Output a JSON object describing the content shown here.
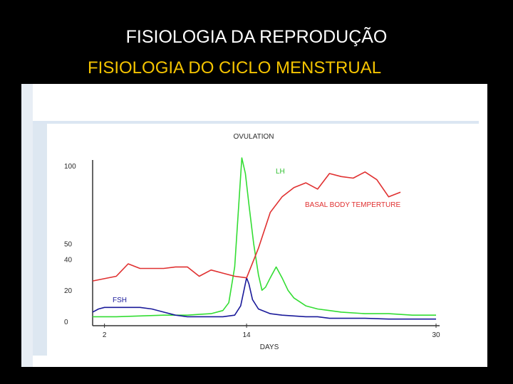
{
  "slide": {
    "title": "FISIOLOGIA DA REPRODUÇÃO",
    "subtitle": "FISIOLOGIA DO CICLO MENSTRUAL"
  },
  "colors": {
    "background": "#000000",
    "title": "#ffffff",
    "subtitle": "#f5c400",
    "lh": "#33dd33",
    "fsh": "#1a1a9a",
    "bbt": "#e03030"
  },
  "chart_data": {
    "type": "line",
    "title": "OVULATION",
    "xlabel": "DAYS",
    "ylabel": "",
    "xlim": [
      1,
      30
    ],
    "ylim": [
      0,
      100
    ],
    "x_ticks": [
      2,
      14,
      30
    ],
    "y_ticks": [
      0,
      20,
      40,
      50,
      100
    ],
    "grid": false,
    "series": [
      {
        "name": "LH",
        "color": "#33dd33",
        "points": [
          [
            1,
            3
          ],
          [
            3,
            3
          ],
          [
            5,
            3.5
          ],
          [
            7,
            4
          ],
          [
            9,
            4
          ],
          [
            10,
            4.5
          ],
          [
            11,
            5
          ],
          [
            12,
            7
          ],
          [
            12.5,
            12
          ],
          [
            13,
            35
          ],
          [
            13.3,
            70
          ],
          [
            13.6,
            105
          ],
          [
            13.9,
            95
          ],
          [
            14.2,
            75
          ],
          [
            14.6,
            50
          ],
          [
            15,
            30
          ],
          [
            15.3,
            20
          ],
          [
            15.6,
            22
          ],
          [
            16,
            28
          ],
          [
            16.5,
            35
          ],
          [
            17,
            28
          ],
          [
            17.5,
            20
          ],
          [
            18,
            15
          ],
          [
            19,
            10
          ],
          [
            20,
            8
          ],
          [
            21,
            7
          ],
          [
            22,
            6
          ],
          [
            24,
            5
          ],
          [
            26,
            5
          ],
          [
            28,
            4
          ],
          [
            30,
            4
          ]
        ]
      },
      {
        "name": "FSH",
        "color": "#1a1a9a",
        "points": [
          [
            1,
            6
          ],
          [
            1.5,
            8
          ],
          [
            2,
            9
          ],
          [
            3,
            9
          ],
          [
            4,
            9
          ],
          [
            5,
            9
          ],
          [
            6,
            8
          ],
          [
            7,
            6
          ],
          [
            8,
            4
          ],
          [
            9,
            3
          ],
          [
            10,
            3
          ],
          [
            11,
            3
          ],
          [
            12,
            3
          ],
          [
            13,
            4
          ],
          [
            13.5,
            10
          ],
          [
            14,
            28
          ],
          [
            14.2,
            24
          ],
          [
            14.5,
            14
          ],
          [
            15,
            8
          ],
          [
            16,
            5
          ],
          [
            17,
            4
          ],
          [
            18,
            3.5
          ],
          [
            19,
            3
          ],
          [
            20,
            3
          ],
          [
            21,
            2
          ],
          [
            22,
            2
          ],
          [
            24,
            2
          ],
          [
            26,
            1.5
          ],
          [
            28,
            1.5
          ],
          [
            30,
            1.5
          ]
        ]
      },
      {
        "name": "BASAL BODY TEMPERTURE",
        "color": "#e03030",
        "points": [
          [
            1,
            26
          ],
          [
            3,
            29
          ],
          [
            4,
            37
          ],
          [
            5,
            34
          ],
          [
            6,
            34
          ],
          [
            7,
            34
          ],
          [
            8,
            35
          ],
          [
            9,
            35
          ],
          [
            10,
            29
          ],
          [
            11,
            33
          ],
          [
            12,
            31
          ],
          [
            13,
            29
          ],
          [
            14,
            28
          ],
          [
            15,
            47
          ],
          [
            16,
            70
          ],
          [
            17,
            80
          ],
          [
            18,
            86
          ],
          [
            19,
            89
          ],
          [
            20,
            85
          ],
          [
            21,
            95
          ],
          [
            22,
            93
          ],
          [
            23,
            92
          ],
          [
            24,
            96
          ],
          [
            25,
            91
          ],
          [
            26,
            80
          ],
          [
            27,
            83
          ]
        ]
      }
    ],
    "annotations": [
      "LH",
      "BASAL BODY TEMPERTURE",
      "FSH"
    ]
  }
}
